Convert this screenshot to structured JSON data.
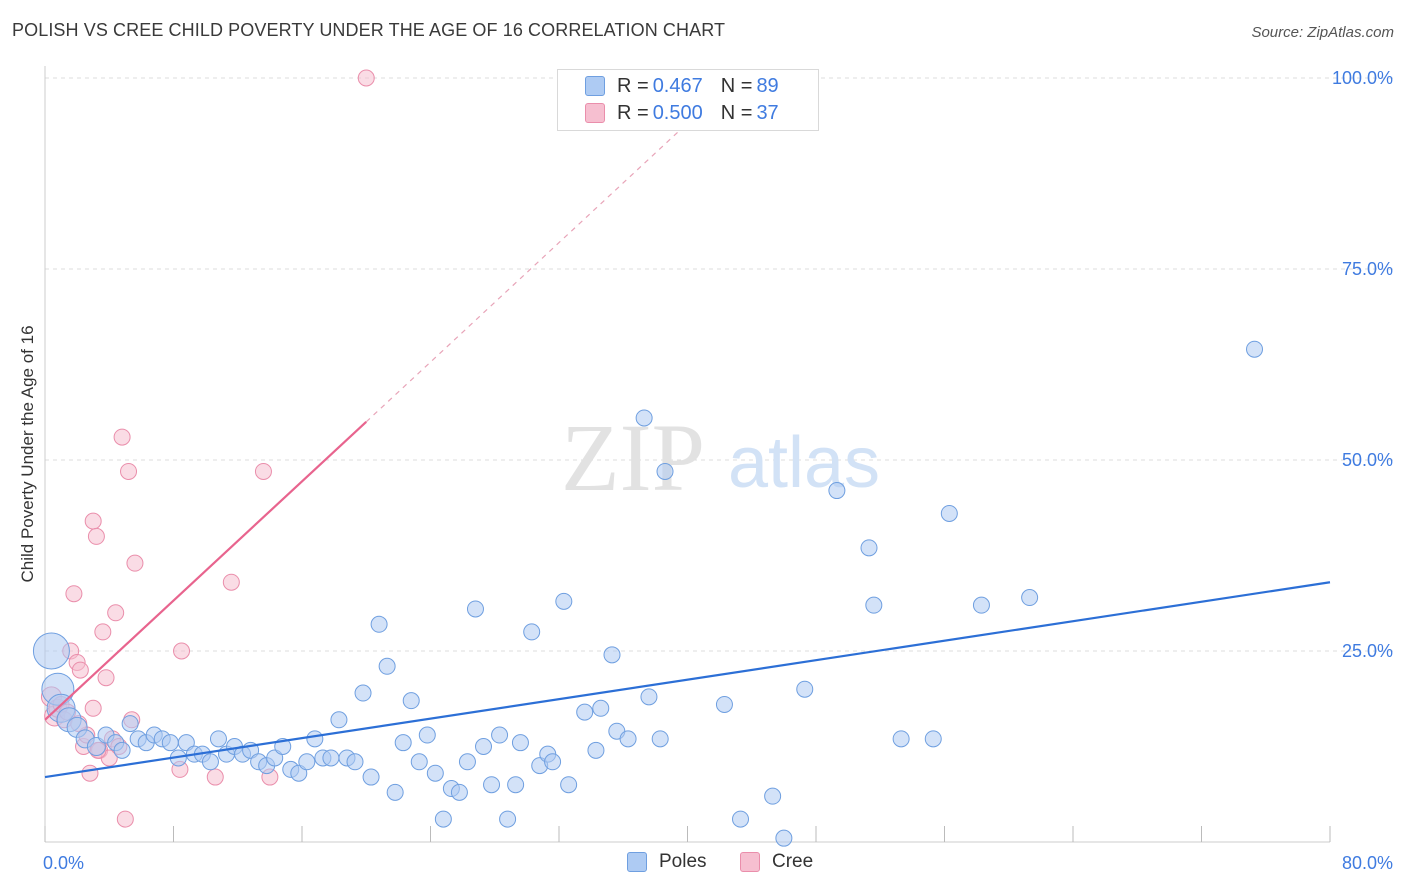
{
  "header": {
    "title": "POLISH VS CREE CHILD POVERTY UNDER THE AGE OF 16 CORRELATION CHART",
    "source": "Source: ZipAtlas.com"
  },
  "watermark": {
    "zip": "ZIP",
    "atlas": "atlas"
  },
  "legend": {
    "rows": [
      {
        "r_label": "R = ",
        "r_value": "0.467",
        "n_label": "N = ",
        "n_value": "89"
      },
      {
        "r_label": "R = ",
        "r_value": "0.500",
        "n_label": "N = ",
        "n_value": "37"
      }
    ]
  },
  "bottom_legend": {
    "series_a": "Poles",
    "series_b": "Cree"
  },
  "colors": {
    "poles_fill": "#aecbf3",
    "poles_stroke": "#6f9fe0",
    "poles_line": "#2c6fd6",
    "cree_fill": "#f6bfd0",
    "cree_stroke": "#ea8eab",
    "cree_line": "#e8648e",
    "axis_tick_text": "#3f7be0",
    "grid": "#dcdcdc"
  },
  "chart_data": {
    "type": "scatter",
    "title": "POLISH VS CREE CHILD POVERTY UNDER THE AGE OF 16 CORRELATION CHART",
    "xlabel": "",
    "ylabel": "Child Poverty Under the Age of 16",
    "xlim": [
      0,
      80
    ],
    "ylim": [
      0,
      100
    ],
    "x_tick_labels": [
      "0.0%",
      "80.0%"
    ],
    "y_tick_labels": [
      "100.0%",
      "75.0%",
      "50.0%",
      "25.0%"
    ],
    "y_ticks": [
      100,
      75,
      50,
      25
    ],
    "grid": true,
    "legend_position": "top-center",
    "series": [
      {
        "name": "Poles",
        "r": 0.467,
        "n": 89,
        "trend": {
          "x": [
            0,
            80
          ],
          "y": [
            8.5,
            34.0
          ]
        },
        "points": [
          [
            0.4,
            25.0,
            18
          ],
          [
            0.8,
            20.0,
            16
          ],
          [
            1.0,
            17.5,
            14
          ],
          [
            1.5,
            16.0,
            12
          ],
          [
            2.0,
            15.0,
            10
          ],
          [
            2.5,
            13.5,
            9
          ],
          [
            3.2,
            12.5,
            9
          ],
          [
            3.8,
            14.0,
            8
          ],
          [
            4.4,
            13.0,
            8
          ],
          [
            4.8,
            12.0,
            8
          ],
          [
            5.3,
            15.5,
            8
          ],
          [
            5.8,
            13.5,
            8
          ],
          [
            6.3,
            13.0,
            8
          ],
          [
            6.8,
            14.0,
            8
          ],
          [
            7.3,
            13.5,
            8
          ],
          [
            7.8,
            13.0,
            8
          ],
          [
            8.3,
            11.0,
            8
          ],
          [
            8.8,
            13.0,
            8
          ],
          [
            9.3,
            11.5,
            8
          ],
          [
            9.8,
            11.5,
            8
          ],
          [
            10.3,
            10.5,
            8
          ],
          [
            10.8,
            13.5,
            8
          ],
          [
            11.3,
            11.5,
            8
          ],
          [
            11.8,
            12.5,
            8
          ],
          [
            12.3,
            11.5,
            8
          ],
          [
            12.8,
            12.0,
            8
          ],
          [
            13.3,
            10.5,
            8
          ],
          [
            13.8,
            10.0,
            8
          ],
          [
            14.3,
            11.0,
            8
          ],
          [
            14.8,
            12.5,
            8
          ],
          [
            15.3,
            9.5,
            8
          ],
          [
            15.8,
            9.0,
            8
          ],
          [
            16.3,
            10.5,
            8
          ],
          [
            16.8,
            13.5,
            8
          ],
          [
            17.3,
            11.0,
            8
          ],
          [
            17.8,
            11.0,
            8
          ],
          [
            18.3,
            16.0,
            8
          ],
          [
            18.8,
            11.0,
            8
          ],
          [
            19.3,
            10.5,
            8
          ],
          [
            19.8,
            19.5,
            8
          ],
          [
            20.3,
            8.5,
            8
          ],
          [
            20.8,
            28.5,
            8
          ],
          [
            21.3,
            23.0,
            8
          ],
          [
            21.8,
            6.5,
            8
          ],
          [
            22.3,
            13.0,
            8
          ],
          [
            22.8,
            18.5,
            8
          ],
          [
            23.3,
            10.5,
            8
          ],
          [
            23.8,
            14.0,
            8
          ],
          [
            24.3,
            9.0,
            8
          ],
          [
            24.8,
            3.0,
            8
          ],
          [
            25.3,
            7.0,
            8
          ],
          [
            25.8,
            6.5,
            8
          ],
          [
            26.3,
            10.5,
            8
          ],
          [
            26.8,
            30.5,
            8
          ],
          [
            27.3,
            12.5,
            8
          ],
          [
            27.8,
            7.5,
            8
          ],
          [
            28.3,
            14.0,
            8
          ],
          [
            28.8,
            3.0,
            8
          ],
          [
            29.3,
            7.5,
            8
          ],
          [
            29.6,
            13.0,
            8
          ],
          [
            30.3,
            27.5,
            8
          ],
          [
            30.8,
            10.0,
            8
          ],
          [
            31.3,
            11.5,
            8
          ],
          [
            31.6,
            10.5,
            8
          ],
          [
            32.3,
            31.5,
            8
          ],
          [
            32.6,
            7.5,
            8
          ],
          [
            33.6,
            17.0,
            8
          ],
          [
            34.3,
            12.0,
            8
          ],
          [
            34.6,
            17.5,
            8
          ],
          [
            35.3,
            24.5,
            8
          ],
          [
            35.6,
            14.5,
            8
          ],
          [
            36.3,
            13.5,
            8
          ],
          [
            37.3,
            55.5,
            8
          ],
          [
            37.6,
            19.0,
            8
          ],
          [
            38.3,
            13.5,
            8
          ],
          [
            38.6,
            48.5,
            8
          ],
          [
            42.3,
            18.0,
            8
          ],
          [
            43.3,
            3.0,
            8
          ],
          [
            45.3,
            6.0,
            8
          ],
          [
            46.0,
            0.5,
            8
          ],
          [
            47.3,
            20.0,
            8
          ],
          [
            49.3,
            46.0,
            8
          ],
          [
            51.3,
            38.5,
            8
          ],
          [
            51.6,
            31.0,
            8
          ],
          [
            53.3,
            13.5,
            8
          ],
          [
            55.3,
            13.5,
            8
          ],
          [
            56.3,
            43.0,
            8
          ],
          [
            58.3,
            31.0,
            8
          ],
          [
            61.3,
            32.0,
            8
          ],
          [
            75.3,
            64.5,
            8
          ]
        ]
      },
      {
        "name": "Cree",
        "r": 0.5,
        "n": 37,
        "trend": {
          "x": [
            0,
            20
          ],
          "y": [
            16.0,
            55.0
          ]
        },
        "trend_dashed": {
          "x": [
            20,
            42
          ],
          "y": [
            55.0,
            98.0
          ]
        },
        "points": [
          [
            0.4,
            19.0,
            10
          ],
          [
            0.6,
            16.5,
            10
          ],
          [
            0.8,
            17.5,
            9
          ],
          [
            1.0,
            18.0,
            8
          ],
          [
            1.2,
            16.0,
            8
          ],
          [
            1.4,
            17.0,
            8
          ],
          [
            1.6,
            25.0,
            8
          ],
          [
            1.8,
            32.5,
            8
          ],
          [
            2.0,
            23.5,
            8
          ],
          [
            2.2,
            22.5,
            8
          ],
          [
            2.4,
            12.5,
            8
          ],
          [
            2.6,
            14.0,
            8
          ],
          [
            2.8,
            9.0,
            8
          ],
          [
            3.0,
            17.5,
            8
          ],
          [
            3.0,
            42.0,
            8
          ],
          [
            3.2,
            40.0,
            8
          ],
          [
            3.4,
            12.0,
            8
          ],
          [
            3.6,
            27.5,
            8
          ],
          [
            3.8,
            21.5,
            8
          ],
          [
            4.0,
            11.0,
            8
          ],
          [
            4.2,
            13.5,
            8
          ],
          [
            4.4,
            30.0,
            8
          ],
          [
            4.6,
            12.5,
            8
          ],
          [
            4.8,
            53.0,
            8
          ],
          [
            5.0,
            3.0,
            8
          ],
          [
            5.2,
            48.5,
            8
          ],
          [
            5.4,
            16.0,
            8
          ],
          [
            5.6,
            36.5,
            8
          ],
          [
            8.4,
            9.5,
            8
          ],
          [
            8.5,
            25.0,
            8
          ],
          [
            10.6,
            8.5,
            8
          ],
          [
            11.6,
            34.0,
            8
          ],
          [
            13.6,
            48.5,
            8
          ],
          [
            14.0,
            8.5,
            8
          ],
          [
            20.0,
            100.0,
            8
          ],
          [
            3.3,
            12.0,
            8
          ],
          [
            2.1,
            15.5,
            8
          ]
        ]
      }
    ]
  }
}
